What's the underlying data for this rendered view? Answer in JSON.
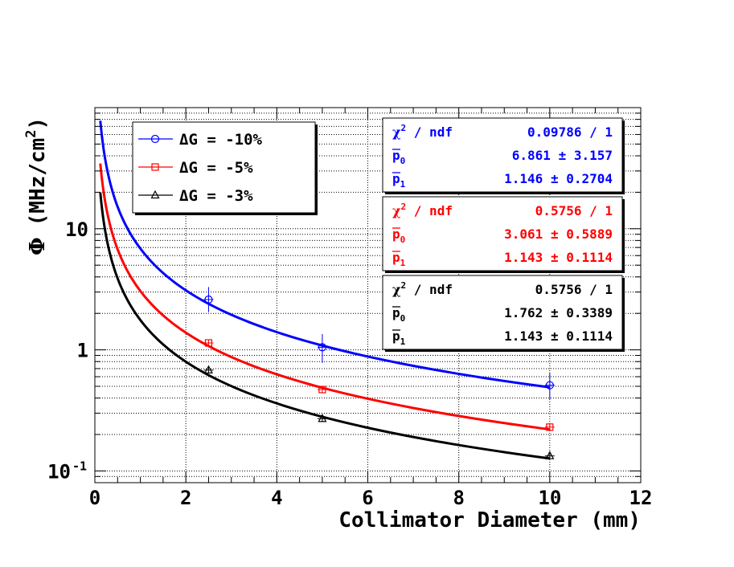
{
  "chart_data": {
    "type": "scatter",
    "xlabel": "Collimator Diameter (mm)",
    "ylabel_symbol": "Φ",
    "ylabel_unit": "(MHz/cm",
    "ylabel_unit_sup": "2",
    "ylabel_unit_close": ")",
    "xlim": [
      0,
      12
    ],
    "ylim": [
      0.08,
      100
    ],
    "yscale": "log",
    "grid": true,
    "legend_placement": "top-left",
    "x_ticks": [
      "0",
      "2",
      "4",
      "6",
      "8",
      "10",
      "12"
    ],
    "y_ticks": [
      {
        "base": "10",
        "exp": "-1",
        "value": 0.1
      },
      {
        "base": "1",
        "exp": "",
        "value": 1
      },
      {
        "base": "10",
        "exp": "",
        "value": 10
      }
    ],
    "series": [
      {
        "legend": "ΔG = -10%",
        "color": "#0000ff",
        "marker": "circle",
        "points": [
          {
            "x": 2.5,
            "y": 2.6,
            "ylo": 2.05,
            "yhi": 3.3
          },
          {
            "x": 5.0,
            "y": 1.05,
            "ylo": 0.78,
            "yhi": 1.35
          },
          {
            "x": 10.0,
            "y": 0.51,
            "ylo": 0.39,
            "yhi": 0.65
          }
        ],
        "fit": {
          "p0": 6.861,
          "p1": 1.146
        },
        "stats": {
          "chi2_label": "χ",
          "chi2_sup": "2",
          "chi2_rest": " / ndf",
          "chi2_value": "0.09786 / 1",
          "p0_label": "p",
          "p0_sub": "0",
          "p0_value": "6.861 ± 3.157",
          "p1_label": "p",
          "p1_sub": "1",
          "p1_value": "1.146 ± 0.2704"
        }
      },
      {
        "legend": "ΔG = -5%",
        "color": "#ff0000",
        "marker": "square",
        "points": [
          {
            "x": 2.5,
            "y": 1.14,
            "ylo": 1.08,
            "yhi": 1.2
          },
          {
            "x": 5.0,
            "y": 0.47,
            "ylo": 0.445,
            "yhi": 0.495
          },
          {
            "x": 10.0,
            "y": 0.23,
            "ylo": 0.218,
            "yhi": 0.242
          }
        ],
        "fit": {
          "p0": 3.061,
          "p1": 1.143
        },
        "stats": {
          "chi2_label": "χ",
          "chi2_sup": "2",
          "chi2_rest": " / ndf",
          "chi2_value": "0.5756 / 1",
          "p0_label": "p",
          "p0_sub": "0",
          "p0_value": "3.061 ± 0.5889",
          "p1_label": "p",
          "p1_sub": "1",
          "p1_value": "1.143 ± 0.1114"
        }
      },
      {
        "legend": "ΔG = -3%",
        "color": "#000000",
        "marker": "triangle",
        "points": [
          {
            "x": 2.5,
            "y": 0.68,
            "ylo": 0.645,
            "yhi": 0.715
          },
          {
            "x": 5.0,
            "y": 0.27,
            "ylo": 0.256,
            "yhi": 0.284
          },
          {
            "x": 10.0,
            "y": 0.133,
            "ylo": 0.126,
            "yhi": 0.14
          }
        ],
        "fit": {
          "p0": 1.762,
          "p1": 1.143
        },
        "stats": {
          "chi2_label": "χ",
          "chi2_sup": "2",
          "chi2_rest": " / ndf",
          "chi2_value": "0.5756 / 1",
          "p0_label": "p",
          "p0_sub": "0",
          "p0_value": "1.762 ± 0.3389",
          "p1_label": "p",
          "p1_sub": "1",
          "p1_value": "1.143 ± 0.1114"
        }
      }
    ]
  }
}
